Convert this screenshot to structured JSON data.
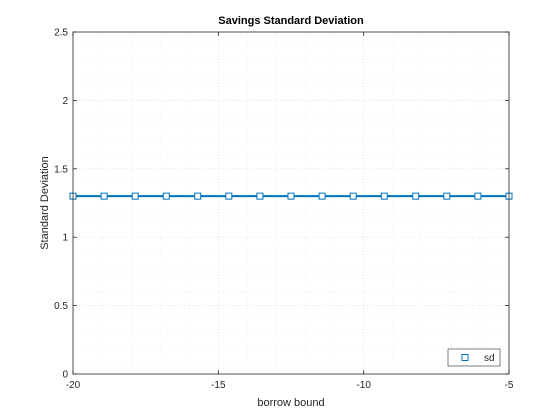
{
  "chart_data": {
    "type": "line",
    "title": "Savings Standard Deviation",
    "xlabel": "borrow bound",
    "ylabel": "Standard Deviation",
    "xlim": [
      -20,
      -5
    ],
    "ylim": [
      0,
      2.5
    ],
    "x_ticks": [
      -20,
      -15,
      -10,
      -5
    ],
    "y_ticks": [
      0,
      0.5,
      1,
      1.5,
      2,
      2.5
    ],
    "grid": "major and minor, dotted",
    "legend_position": "bottom-right",
    "x": [
      -20,
      -18.93,
      -17.86,
      -16.79,
      -15.71,
      -14.64,
      -13.57,
      -12.5,
      -11.43,
      -10.36,
      -9.29,
      -8.21,
      -7.14,
      -6.07,
      -5
    ],
    "series": [
      {
        "name": "sd",
        "marker": "square",
        "color": "#0072bd",
        "values": [
          1.3,
          1.3,
          1.3,
          1.3,
          1.3,
          1.3,
          1.3,
          1.3,
          1.3,
          1.3,
          1.3,
          1.3,
          1.3,
          1.3,
          1.3
        ]
      }
    ]
  }
}
